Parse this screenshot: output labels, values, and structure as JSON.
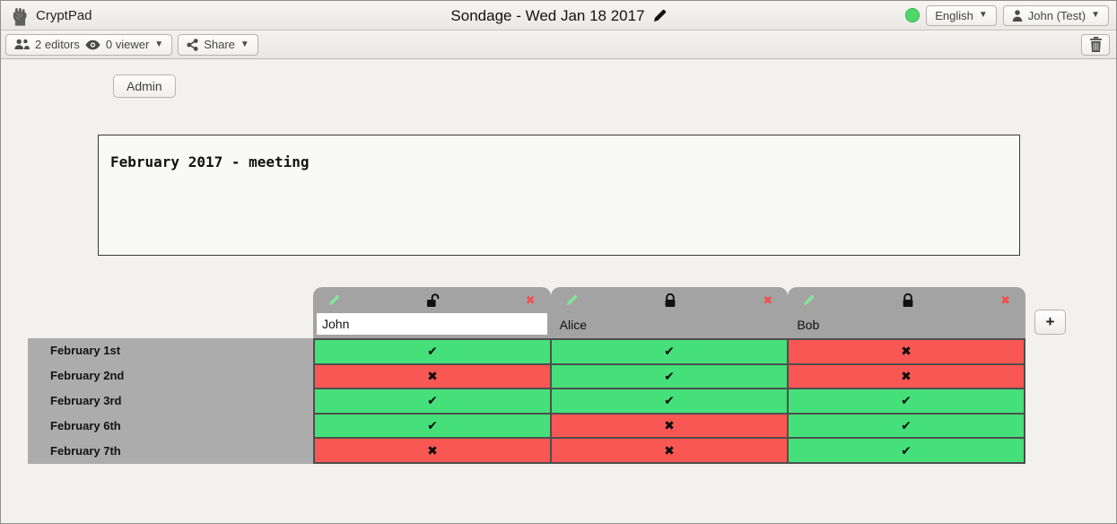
{
  "titlebar": {
    "app_name": "CryptPad",
    "document_title": "Sondage - Wed Jan 18 2017",
    "language_label": "English",
    "user_label": "John (Test)"
  },
  "toolbar": {
    "editors_label": "2 editors",
    "viewer_label": "0 viewer",
    "share_label": "Share"
  },
  "admin_button_label": "Admin",
  "description_text": "February 2017 - meeting",
  "poll": {
    "add_column_label": "+",
    "marks": {
      "yes": "✔",
      "no": "✖"
    },
    "columns": [
      {
        "name": "John",
        "editable": true,
        "locked": false
      },
      {
        "name": "Alice",
        "editable": false,
        "locked": true
      },
      {
        "name": "Bob",
        "editable": false,
        "locked": true
      }
    ],
    "rows": [
      {
        "label": "February 1st",
        "votes": [
          "yes",
          "yes",
          "no"
        ]
      },
      {
        "label": "February 2nd",
        "votes": [
          "no",
          "yes",
          "no"
        ]
      },
      {
        "label": "February 3rd",
        "votes": [
          "yes",
          "yes",
          "yes"
        ]
      },
      {
        "label": "February 6th",
        "votes": [
          "yes",
          "no",
          "yes"
        ]
      },
      {
        "label": "February 7th",
        "votes": [
          "no",
          "no",
          "yes"
        ]
      }
    ]
  },
  "colors": {
    "yes_cell": "#45e07a",
    "no_cell": "#f95754",
    "tab_gray": "#a3a3a3",
    "row_label_gray": "#acacac",
    "status_green": "#4ed967",
    "delete_x_red": "#f0504d",
    "pencil_green": "#84e498"
  },
  "icons": {
    "logo": "cryptpad-fist",
    "editors": "users",
    "viewer": "eye",
    "share": "share-nodes",
    "user": "person",
    "trash": "trash-can",
    "edit_title": "pencil",
    "column_edit": "pencil-green",
    "column_locked": "lock-closed",
    "column_unlocked": "lock-open",
    "column_delete": "x-mark",
    "dropdown": "caret-down"
  }
}
